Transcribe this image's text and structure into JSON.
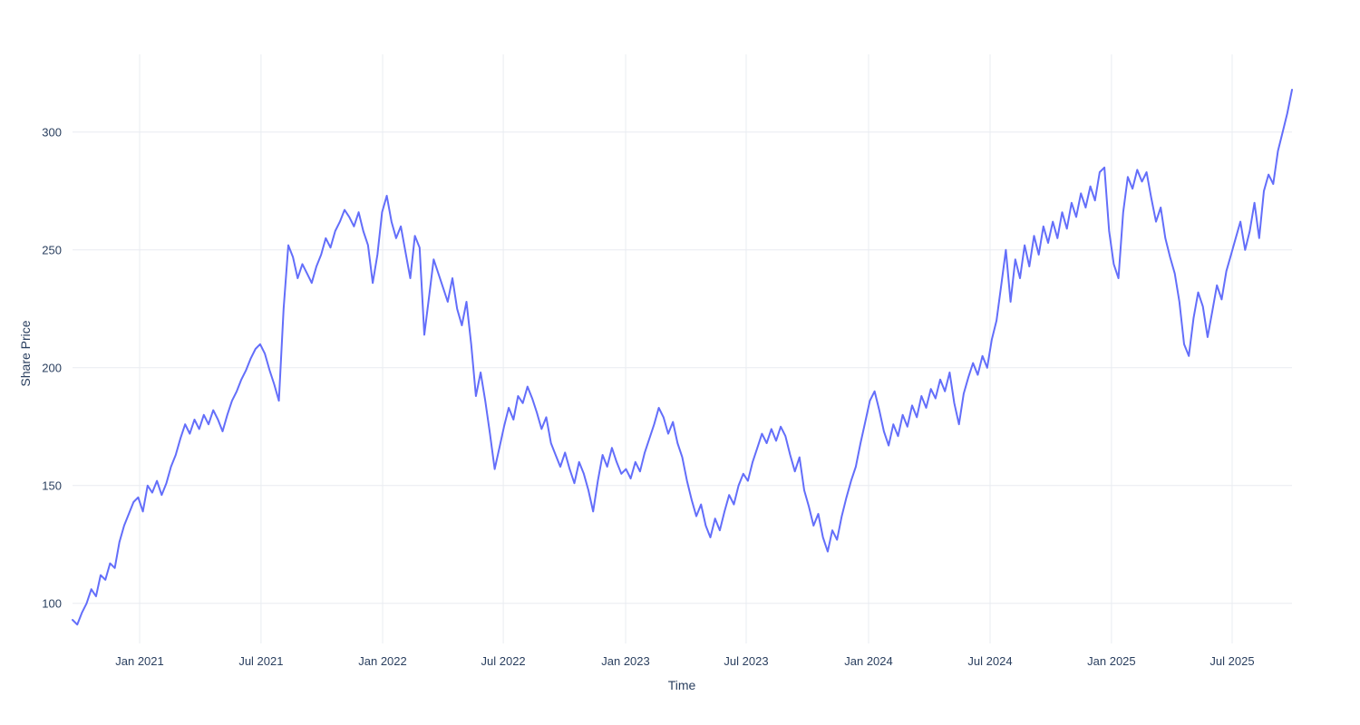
{
  "chart_data": {
    "type": "line",
    "title": "",
    "xlabel": "Time",
    "ylabel": "Share Price",
    "series_name": "Share Price",
    "line_color": "#636efa",
    "grid_color": "#e9ecf1",
    "text_color": "#2a3f5f",
    "background_color": "#ffffff",
    "grid": true,
    "legend": "none",
    "ylim": [
      83,
      333
    ],
    "y_ticks": [
      100,
      150,
      200,
      250,
      300
    ],
    "x_ticks": [
      {
        "label": "Jan 2021",
        "pos": 0.055
      },
      {
        "label": "Jul 2021",
        "pos": 0.1546
      },
      {
        "label": "Jan 2022",
        "pos": 0.2543
      },
      {
        "label": "Jul 2022",
        "pos": 0.3532
      },
      {
        "label": "Jan 2023",
        "pos": 0.4535
      },
      {
        "label": "Jul 2023",
        "pos": 0.5524
      },
      {
        "label": "Jan 2024",
        "pos": 0.6528
      },
      {
        "label": "Jul 2024",
        "pos": 0.7524
      },
      {
        "label": "Jan 2025",
        "pos": 0.852
      },
      {
        "label": "Jul 2025",
        "pos": 0.9509
      }
    ],
    "x_range": [
      "Oct 2020",
      "Oct 2025"
    ],
    "values": [
      93,
      91,
      96,
      100,
      106,
      103,
      112,
      110,
      117,
      115,
      126,
      133,
      138,
      143,
      145,
      139,
      150,
      147,
      152,
      146,
      151,
      158,
      163,
      170,
      176,
      172,
      178,
      174,
      180,
      176,
      182,
      178,
      173,
      180,
      186,
      190,
      195,
      199,
      204,
      208,
      210,
      206,
      199,
      193,
      186,
      225,
      252,
      247,
      238,
      244,
      240,
      236,
      243,
      248,
      255,
      251,
      258,
      262,
      267,
      264,
      260,
      266,
      258,
      252,
      236,
      248,
      266,
      273,
      262,
      255,
      260,
      249,
      238,
      256,
      251,
      214,
      230,
      246,
      240,
      234,
      228,
      238,
      225,
      218,
      228,
      210,
      188,
      198,
      186,
      172,
      157,
      166,
      175,
      183,
      178,
      188,
      185,
      192,
      187,
      181,
      174,
      179,
      168,
      163,
      158,
      164,
      157,
      151,
      160,
      155,
      148,
      139,
      152,
      163,
      158,
      166,
      160,
      155,
      157,
      153,
      160,
      156,
      164,
      170,
      176,
      183,
      179,
      172,
      177,
      168,
      162,
      152,
      144,
      137,
      142,
      133,
      128,
      136,
      131,
      139,
      146,
      142,
      150,
      155,
      152,
      160,
      166,
      172,
      168,
      174,
      169,
      175,
      171,
      163,
      156,
      162,
      148,
      141,
      133,
      138,
      128,
      122,
      131,
      127,
      137,
      145,
      152,
      158,
      168,
      177,
      186,
      190,
      182,
      173,
      167,
      176,
      171,
      180,
      175,
      184,
      179,
      188,
      183,
      191,
      187,
      195,
      190,
      198,
      185,
      176,
      189,
      196,
      202,
      197,
      205,
      200,
      212,
      220,
      235,
      250,
      228,
      246,
      238,
      252,
      243,
      256,
      248,
      260,
      253,
      262,
      255,
      266,
      259,
      270,
      264,
      274,
      268,
      277,
      271,
      283,
      285,
      258,
      244,
      238,
      266,
      281,
      276,
      284,
      279,
      283,
      272,
      262,
      268,
      255,
      247,
      240,
      228,
      210,
      205,
      221,
      232,
      226,
      213,
      224,
      235,
      229,
      241,
      248,
      255,
      262,
      250,
      258,
      270,
      255,
      275,
      282,
      278,
      292,
      300,
      308,
      318
    ]
  }
}
